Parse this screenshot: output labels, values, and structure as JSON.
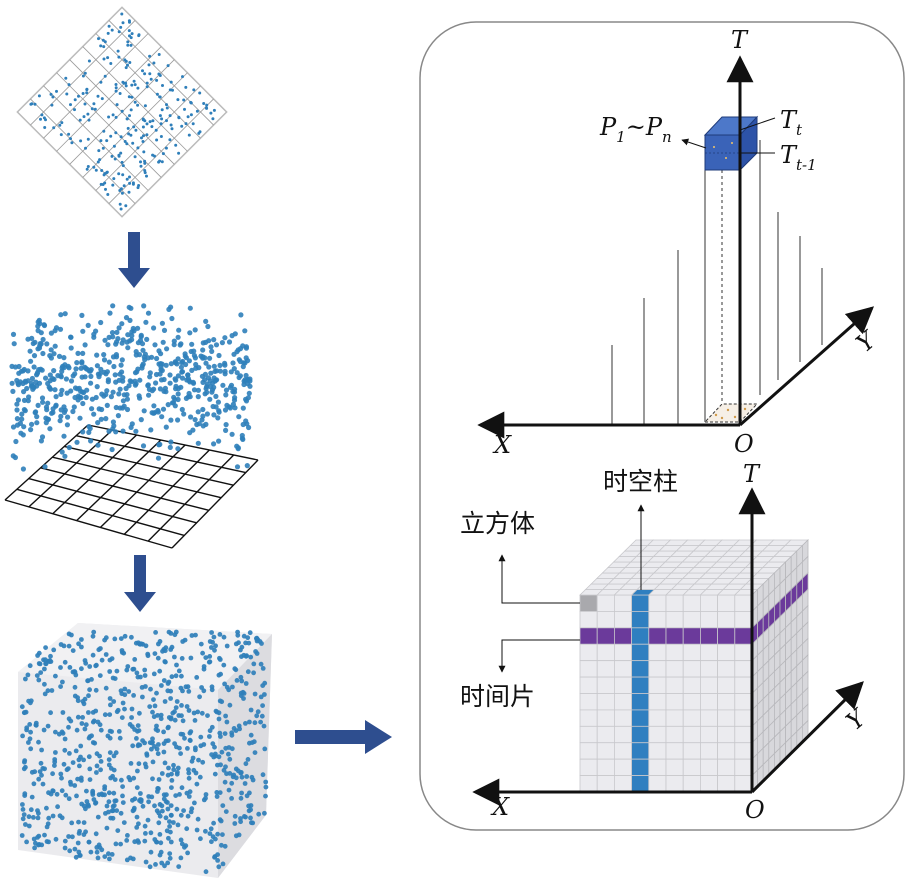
{
  "labels": {
    "axis_t_top": "T",
    "axis_x_top": "X",
    "axis_y_top": "Y",
    "origin_top": "O",
    "tt_main": "T",
    "tt_sub": "t",
    "tt1_main": "T",
    "tt1_sub": "t-1",
    "points_p1": "P",
    "points_sub1": "1",
    "points_tilde": "~P",
    "points_subn": "n",
    "axis_t_bottom": "T",
    "axis_x_bottom": "X",
    "axis_y_bottom": "Y",
    "origin_bottom": "O",
    "space_time_column": "时空柱",
    "cube": "立方体",
    "time_slice": "时间片"
  },
  "colors": {
    "point": "#2f7fba",
    "arrow": "#2e4e8f",
    "column": "#2f7fc0",
    "slice": "#6b3a9b",
    "cell_fill": "#ebebef",
    "grid": "#c8c8cc",
    "highlight_cube": "#3a63b8"
  }
}
